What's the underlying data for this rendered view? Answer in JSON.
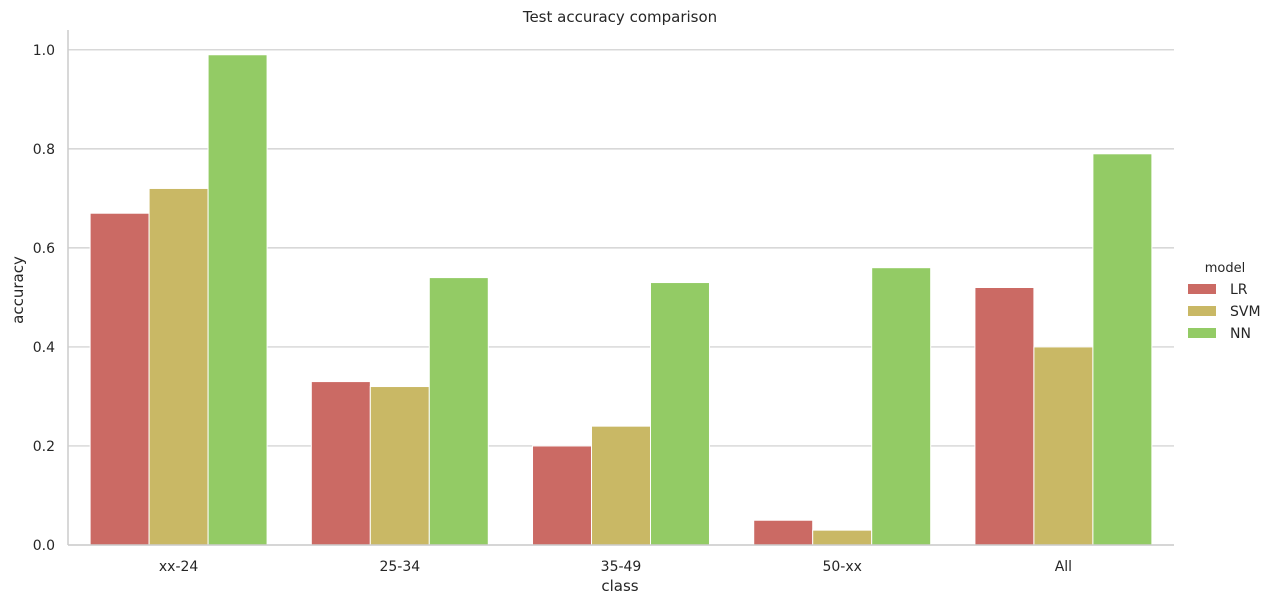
{
  "chart_data": {
    "type": "bar",
    "title": "Test accuracy comparison",
    "xlabel": "class",
    "ylabel": "accuracy",
    "categories": [
      "xx-24",
      "25-34",
      "35-49",
      "50-xx",
      "All"
    ],
    "series": [
      {
        "name": "LR",
        "color": "#cb6a64",
        "values": [
          0.67,
          0.33,
          0.2,
          0.05,
          0.52
        ]
      },
      {
        "name": "SVM",
        "color": "#c9b865",
        "values": [
          0.72,
          0.32,
          0.24,
          0.03,
          0.4
        ]
      },
      {
        "name": "NN",
        "color": "#93cb65",
        "values": [
          0.99,
          0.54,
          0.53,
          0.56,
          0.79
        ]
      }
    ],
    "ylim": [
      0,
      1.04
    ],
    "yticks": [
      0.0,
      0.2,
      0.4,
      0.6,
      0.8,
      1.0
    ],
    "ytick_labels": [
      "0.0",
      "0.2",
      "0.4",
      "0.6",
      "0.8",
      "1.0"
    ],
    "grid": true,
    "legend": {
      "title": "model",
      "placement": "right"
    }
  }
}
